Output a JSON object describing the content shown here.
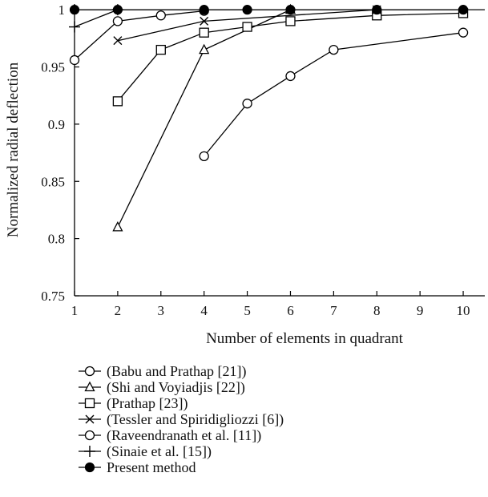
{
  "chart_data": {
    "type": "line",
    "title": "",
    "xlabel": "Number of elements in quadrant",
    "ylabel": "Normalized radial deflection",
    "xlim": [
      1,
      10.5
    ],
    "ylim": [
      0.75,
      1.005
    ],
    "xticks": [
      1,
      2,
      3,
      4,
      5,
      6,
      7,
      8,
      9,
      10
    ],
    "yticks": [
      0.75,
      0.8,
      0.85,
      0.9,
      0.95,
      1
    ],
    "ytick_labels": [
      "0.75",
      "0.8",
      "0.85",
      "0.9",
      "0.95",
      "1"
    ],
    "grid": false,
    "legend_position": "below",
    "reference_line": 1.0,
    "series": [
      {
        "name": "(Babu and Prathap [21])",
        "marker": "circle",
        "x": [
          4,
          5,
          6,
          7,
          10
        ],
        "y": [
          0.872,
          0.918,
          0.942,
          0.965,
          0.98
        ]
      },
      {
        "name": "(Shi and Voyiadjis [22])",
        "marker": "triangle",
        "x": [
          2,
          4,
          6
        ],
        "y": [
          0.81,
          0.965,
          1.0
        ]
      },
      {
        "name": "(Prathap [23])",
        "marker": "square",
        "x": [
          2,
          3,
          4,
          5,
          6,
          8,
          10
        ],
        "y": [
          0.92,
          0.965,
          0.98,
          0.985,
          0.99,
          0.995,
          0.997
        ]
      },
      {
        "name": "(Tessler and Spiridigliozzi [6])",
        "marker": "x",
        "x": [
          2,
          4,
          8
        ],
        "y": [
          0.973,
          0.99,
          1.0
        ]
      },
      {
        "name": "(Raveendranath et al. [11])",
        "marker": "circle",
        "x": [
          1,
          2,
          3,
          4
        ],
        "y": [
          0.956,
          0.99,
          0.995,
          0.999
        ]
      },
      {
        "name": "(Sinaie et al. [15])",
        "marker": "plus",
        "x": [
          1,
          2
        ],
        "y": [
          0.985,
          1.0
        ]
      },
      {
        "name": "Present method",
        "marker": "filled-circle",
        "x": [
          1,
          2,
          4,
          5,
          6,
          8,
          10
        ],
        "y": [
          1.0,
          1.0,
          1.0,
          1.0,
          1.0,
          1.0,
          1.0
        ]
      }
    ]
  }
}
